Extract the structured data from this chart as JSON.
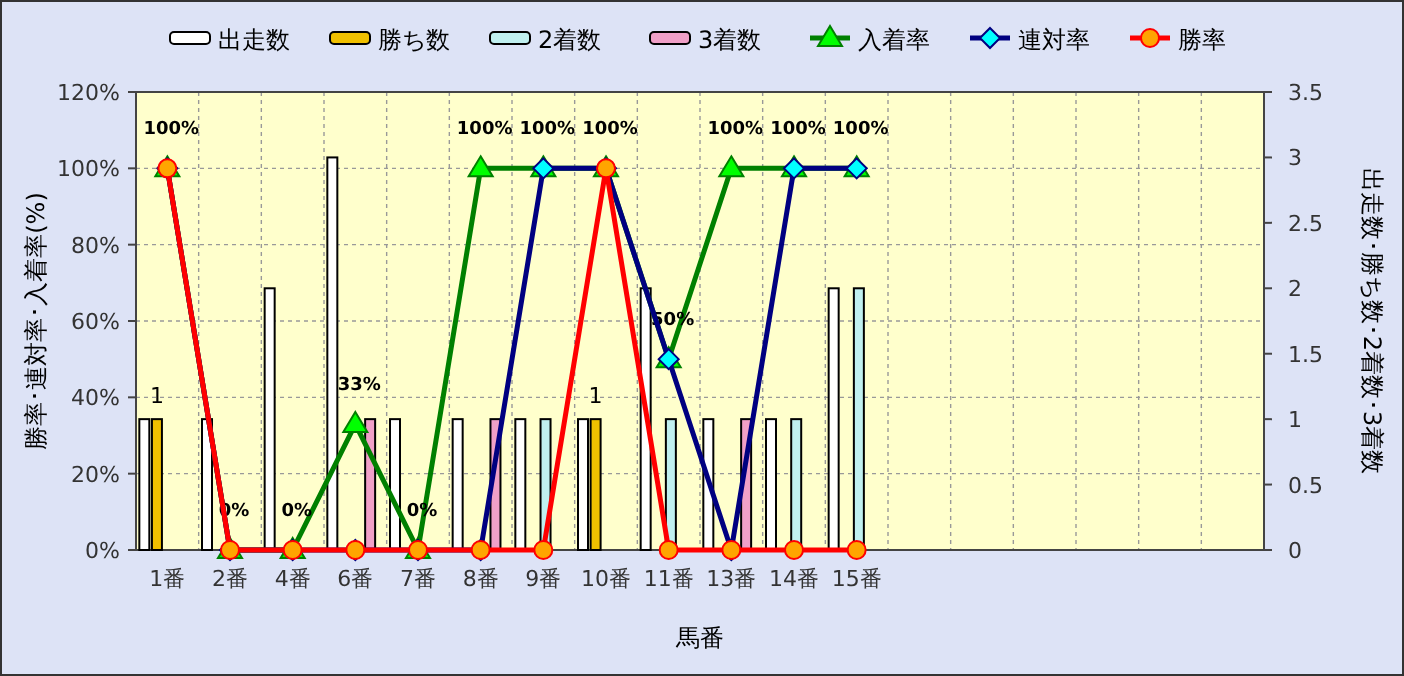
{
  "chart_data": {
    "type": "bar",
    "xlabel": "馬番",
    "ylabel": "勝率･連対率･入着率(%)",
    "y2label": "出走数･勝ち数･2着数･3着数",
    "categories": [
      "1番",
      "2番",
      "4番",
      "6番",
      "7番",
      "8番",
      "9番",
      "10番",
      "11番",
      "13番",
      "14番",
      "15番",
      null,
      null,
      null,
      null,
      null,
      null
    ],
    "series": [
      {
        "name": "出走数",
        "axis": "y2",
        "color": "#ffffff",
        "values": [
          1,
          1,
          2,
          3,
          1,
          1,
          1,
          1,
          2,
          1,
          1,
          2,
          null,
          null,
          null,
          null,
          null,
          null
        ]
      },
      {
        "name": "勝ち数",
        "axis": "y2",
        "color": "#f0c000",
        "values": [
          1,
          0,
          0,
          0,
          0,
          0,
          0,
          1,
          0,
          0,
          0,
          0,
          null,
          null,
          null,
          null,
          null,
          null
        ],
        "value_labels": [
          "1",
          null,
          null,
          null,
          null,
          null,
          null,
          "1",
          null,
          null,
          null,
          null,
          null,
          null,
          null,
          null,
          null,
          null
        ]
      },
      {
        "name": "2着数",
        "axis": "y2",
        "color": "#c0f0f0",
        "values": [
          0,
          0,
          0,
          0,
          0,
          0,
          1,
          0,
          1,
          0,
          1,
          2,
          null,
          null,
          null,
          null,
          null,
          null
        ]
      },
      {
        "name": "3着数",
        "axis": "y2",
        "color": "#f0a0c8",
        "values": [
          0,
          0,
          0,
          1,
          0,
          1,
          0,
          0,
          0,
          1,
          0,
          0,
          null,
          null,
          null,
          null,
          null,
          null
        ]
      },
      {
        "name": "入着率",
        "type": "line",
        "color": "#008000",
        "marker": "triangle",
        "values": [
          100,
          0,
          0,
          33,
          0,
          100,
          100,
          100,
          50,
          100,
          100,
          100,
          null,
          null,
          null,
          null,
          null,
          null
        ],
        "value_labels": [
          "100%",
          "0%",
          "0%",
          "33%",
          "0%",
          "100%",
          "100%",
          "100%",
          "50%",
          "100%",
          "100%",
          "100%",
          null,
          null,
          null,
          null,
          null,
          null
        ]
      },
      {
        "name": "連対率",
        "type": "line",
        "color": "#000080",
        "marker": "diamond",
        "values": [
          100,
          0,
          0,
          0,
          0,
          0,
          100,
          100,
          50,
          0,
          100,
          100,
          null,
          null,
          null,
          null,
          null,
          null
        ]
      },
      {
        "name": "勝率",
        "type": "line",
        "color": "#ff0000",
        "marker": "circle",
        "values": [
          100,
          0,
          0,
          0,
          0,
          0,
          0,
          100,
          0,
          0,
          0,
          0,
          null,
          null,
          null,
          null,
          null,
          null
        ]
      }
    ],
    "ylim": [
      0,
      120
    ],
    "yticks": [
      {
        "value": 0,
        "label": "0%"
      },
      {
        "value": 20,
        "label": "20%"
      },
      {
        "value": 40,
        "label": "40%"
      },
      {
        "value": 60,
        "label": "60%"
      },
      {
        "value": 80,
        "label": "80%"
      },
      {
        "value": 100,
        "label": "100%"
      },
      {
        "value": 120,
        "label": "120%"
      }
    ],
    "y2lim": [
      0,
      3.5
    ],
    "y2ticks": [
      0,
      0.5,
      1,
      1.5,
      2,
      2.5,
      3,
      3.5
    ],
    "grid": true,
    "legend": "top",
    "line_style": "solid"
  }
}
